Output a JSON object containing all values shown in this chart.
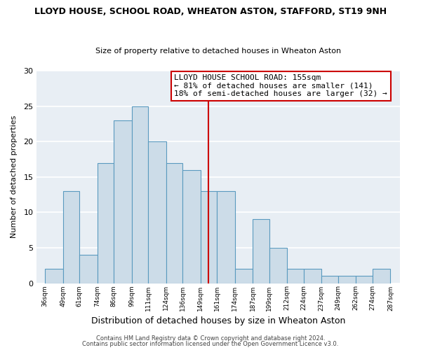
{
  "title": "LLOYD HOUSE, SCHOOL ROAD, WHEATON ASTON, STAFFORD, ST19 9NH",
  "subtitle": "Size of property relative to detached houses in Wheaton Aston",
  "xlabel": "Distribution of detached houses by size in Wheaton Aston",
  "ylabel": "Number of detached properties",
  "bin_edges": [
    36,
    49,
    61,
    74,
    86,
    99,
    111,
    124,
    136,
    149,
    161,
    174,
    187,
    199,
    212,
    224,
    237,
    249,
    262,
    274,
    287
  ],
  "counts": [
    2,
    13,
    4,
    17,
    23,
    25,
    20,
    17,
    16,
    13,
    13,
    2,
    9,
    5,
    2,
    2,
    1,
    1,
    1,
    2
  ],
  "bar_color": "#ccdce8",
  "bar_edge_color": "#5a9abf",
  "vline_x": 155,
  "vline_color": "#cc0000",
  "annotation_text": "LLOYD HOUSE SCHOOL ROAD: 155sqm\n← 81% of detached houses are smaller (141)\n18% of semi-detached houses are larger (32) →",
  "annotation_box_color": "#ffffff",
  "annotation_box_edge": "#cc0000",
  "ylim": [
    0,
    30
  ],
  "yticks": [
    0,
    5,
    10,
    15,
    20,
    25,
    30
  ],
  "footer1": "Contains HM Land Registry data © Crown copyright and database right 2024.",
  "footer2": "Contains public sector information licensed under the Open Government Licence v3.0.",
  "background_color": "#ffffff",
  "plot_bg_color": "#e8eef4",
  "tick_labels": [
    "36sqm",
    "49sqm",
    "61sqm",
    "74sqm",
    "86sqm",
    "99sqm",
    "111sqm",
    "124sqm",
    "136sqm",
    "149sqm",
    "161sqm",
    "174sqm",
    "187sqm",
    "199sqm",
    "212sqm",
    "224sqm",
    "237sqm",
    "249sqm",
    "262sqm",
    "274sqm",
    "287sqm"
  ],
  "title_fontsize": 9,
  "subtitle_fontsize": 8,
  "xlabel_fontsize": 9,
  "ylabel_fontsize": 8,
  "tick_fontsize": 6.5,
  "annotation_fontsize": 8,
  "footer_fontsize": 6
}
